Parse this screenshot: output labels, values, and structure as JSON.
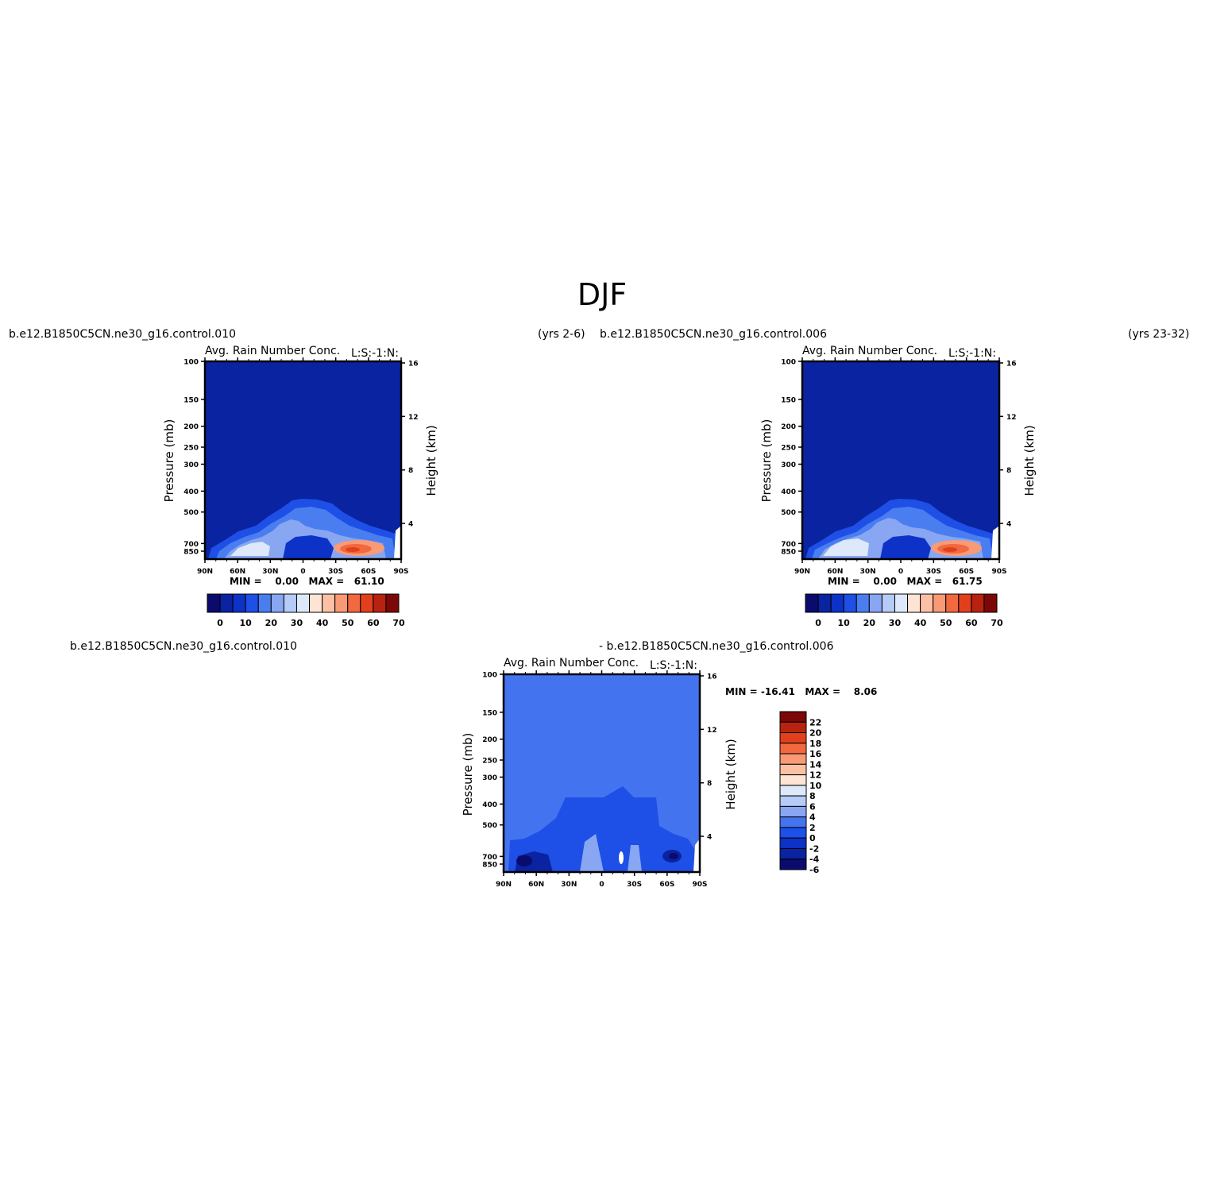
{
  "main_title": "DJF",
  "colors": {
    "abs_scale": [
      "#0b0b6e",
      "#0a23a0",
      "#0d32c8",
      "#1e4fe6",
      "#4a7ef0",
      "#88a6f2",
      "#b6cbf7",
      "#dde9fb",
      "#fde4d4",
      "#fcc1a4",
      "#f99a76",
      "#f2683f",
      "#e2401d",
      "#b82310",
      "#7b0806"
    ],
    "diff_scale": [
      "#0b0b6e",
      "#0a23a0",
      "#0d32c8",
      "#1e4fe6",
      "#4473f0",
      "#88a6f2",
      "#b6cbf7",
      "#dde9fb",
      "#fde4d4",
      "#fcc1a4",
      "#f99a76",
      "#f2683f",
      "#e2401d",
      "#b82310",
      "#7b0806"
    ]
  },
  "panels": {
    "left": {
      "case_label": "b.e12.B1850C5CN.ne30_g16.control.010",
      "years_label": "(yrs 2-6)",
      "subtitle": "Avg. Rain Number Conc.",
      "sublabel_right": "L:S:-1:N:",
      "min_max": "MIN =    0.00   MAX =   61.10"
    },
    "right": {
      "case_label": "b.e12.B1850C5CN.ne30_g16.control.006",
      "years_label": "(yrs 23-32)",
      "subtitle": "Avg. Rain Number Conc.",
      "sublabel_right": "L:S:-1:N:",
      "min_max": "MIN =    0.00   MAX =   61.75"
    },
    "diff": {
      "case_label_a": "b.e12.B1850C5CN.ne30_g16.control.010",
      "case_label_b": "- b.e12.B1850C5CN.ne30_g16.control.006",
      "subtitle": "Avg. Rain Number Conc.",
      "sublabel_right": "L:S:-1:N:",
      "min_max": "MIN = -16.41   MAX =    8.06"
    }
  },
  "chart_data": [
    {
      "type": "heatmap",
      "title": "Avg. Rain Number Conc.",
      "xlabel": "",
      "ylabel": "Pressure (mb)",
      "ylabel_right": "Height (km)",
      "x_ticks": [
        "90N",
        "60N",
        "30N",
        "0",
        "30S",
        "60S",
        "90S"
      ],
      "y_ticks": [
        100,
        150,
        200,
        250,
        300,
        400,
        500,
        700,
        850
      ],
      "y_right_ticks": [
        16,
        12,
        8,
        4
      ],
      "colorbar_labels": [
        "0",
        "10",
        "20",
        "30",
        "40",
        "50",
        "60",
        "70"
      ],
      "min": 0.0,
      "max": 61.1
    },
    {
      "type": "heatmap",
      "title": "Avg. Rain Number Conc.",
      "xlabel": "",
      "ylabel": "Pressure (mb)",
      "ylabel_right": "Height (km)",
      "x_ticks": [
        "90N",
        "60N",
        "30N",
        "0",
        "30S",
        "60S",
        "90S"
      ],
      "y_ticks": [
        100,
        150,
        200,
        250,
        300,
        400,
        500,
        700,
        850
      ],
      "y_right_ticks": [
        16,
        12,
        8,
        4
      ],
      "colorbar_labels": [
        "0",
        "10",
        "20",
        "30",
        "40",
        "50",
        "60",
        "70"
      ],
      "min": 0.0,
      "max": 61.75
    },
    {
      "type": "heatmap",
      "title": "Avg. Rain Number Conc.",
      "xlabel": "",
      "ylabel": "Pressure (mb)",
      "ylabel_right": "Height (km)",
      "x_ticks": [
        "90N",
        "60N",
        "30N",
        "0",
        "30S",
        "60S",
        "90S"
      ],
      "y_ticks": [
        100,
        150,
        200,
        250,
        300,
        400,
        500,
        700,
        850
      ],
      "y_right_ticks": [
        16,
        12,
        8,
        4
      ],
      "colorbar_labels": [
        "22",
        "20",
        "18",
        "16",
        "14",
        "12",
        "10",
        "8",
        "6",
        "4",
        "2",
        "0",
        "-2",
        "-4",
        "-6"
      ],
      "min": -16.41,
      "max": 8.06
    }
  ]
}
